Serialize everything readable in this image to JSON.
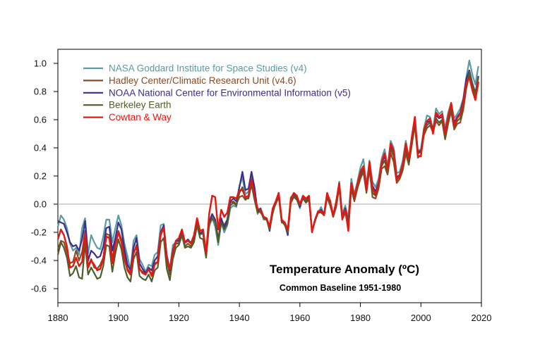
{
  "chart_data": {
    "type": "line",
    "title": "Temperature Anomaly (ºC)",
    "subtitle": "Common Baseline 1951-1980",
    "xlabel": "",
    "ylabel": "",
    "xlim": [
      1880,
      2020
    ],
    "ylim": [
      -0.7,
      1.1
    ],
    "xticks": [
      1880,
      1900,
      1920,
      1940,
      1960,
      1980,
      2000,
      2020
    ],
    "yticks": [
      -0.6,
      -0.4,
      -0.2,
      0.0,
      0.2,
      0.4,
      0.6,
      0.8,
      1.0
    ],
    "ytick_labels": [
      "-0.6",
      "-0.4",
      "-0.2",
      "0.0",
      "0.2",
      "0.4",
      "0.6",
      "0.8",
      "1.0"
    ],
    "reference_line": 0.0,
    "grid": false,
    "legend_position": "top-left",
    "x": [
      1880,
      1881,
      1882,
      1883,
      1884,
      1885,
      1886,
      1887,
      1888,
      1889,
      1890,
      1891,
      1892,
      1893,
      1894,
      1895,
      1896,
      1897,
      1898,
      1899,
      1900,
      1901,
      1902,
      1903,
      1904,
      1905,
      1906,
      1907,
      1908,
      1909,
      1910,
      1911,
      1912,
      1913,
      1914,
      1915,
      1916,
      1917,
      1918,
      1919,
      1920,
      1921,
      1922,
      1923,
      1924,
      1925,
      1926,
      1927,
      1928,
      1929,
      1930,
      1931,
      1932,
      1933,
      1934,
      1935,
      1936,
      1937,
      1938,
      1939,
      1940,
      1941,
      1942,
      1943,
      1944,
      1945,
      1946,
      1947,
      1948,
      1949,
      1950,
      1951,
      1952,
      1953,
      1954,
      1955,
      1956,
      1957,
      1958,
      1959,
      1960,
      1961,
      1962,
      1963,
      1964,
      1965,
      1966,
      1967,
      1968,
      1969,
      1970,
      1971,
      1972,
      1973,
      1974,
      1975,
      1976,
      1977,
      1978,
      1979,
      1980,
      1981,
      1982,
      1983,
      1984,
      1985,
      1986,
      1987,
      1988,
      1989,
      1990,
      1991,
      1992,
      1993,
      1994,
      1995,
      1996,
      1997,
      1998,
      1999,
      2000,
      2001,
      2002,
      2003,
      2004,
      2005,
      2006,
      2007,
      2008,
      2009,
      2010,
      2011,
      2012,
      2013,
      2014,
      2015,
      2016,
      2017,
      2018,
      2019
    ],
    "series": [
      {
        "name": "NASA Goddard Institute for Space Studies (v4)",
        "color": "#5b9aa0",
        "values": [
          -0.16,
          -0.08,
          -0.11,
          -0.17,
          -0.28,
          -0.33,
          -0.31,
          -0.36,
          -0.17,
          -0.1,
          -0.35,
          -0.22,
          -0.27,
          -0.31,
          -0.32,
          -0.23,
          -0.11,
          -0.11,
          -0.27,
          -0.17,
          -0.08,
          -0.15,
          -0.28,
          -0.37,
          -0.47,
          -0.26,
          -0.22,
          -0.39,
          -0.43,
          -0.48,
          -0.43,
          -0.44,
          -0.36,
          -0.34,
          -0.15,
          -0.14,
          -0.36,
          -0.46,
          -0.29,
          -0.27,
          -0.27,
          -0.19,
          -0.28,
          -0.26,
          -0.27,
          -0.22,
          -0.11,
          -0.22,
          -0.2,
          -0.36,
          -0.16,
          -0.1,
          -0.16,
          -0.29,
          -0.13,
          -0.2,
          -0.15,
          -0.03,
          -0.01,
          -0.02,
          0.13,
          0.19,
          0.07,
          0.09,
          0.2,
          0.09,
          -0.07,
          -0.03,
          -0.11,
          -0.11,
          -0.17,
          -0.07,
          0.01,
          0.08,
          -0.13,
          -0.14,
          -0.19,
          0.05,
          0.06,
          0.03,
          -0.03,
          0.06,
          0.03,
          0.05,
          -0.2,
          -0.11,
          -0.06,
          -0.02,
          -0.08,
          0.05,
          0.03,
          -0.08,
          0.01,
          0.16,
          -0.07,
          -0.01,
          -0.1,
          0.18,
          0.07,
          0.16,
          0.26,
          0.32,
          0.14,
          0.31,
          0.16,
          0.12,
          0.18,
          0.32,
          0.39,
          0.27,
          0.45,
          0.4,
          0.22,
          0.23,
          0.31,
          0.45,
          0.33,
          0.46,
          0.61,
          0.38,
          0.39,
          0.54,
          0.63,
          0.62,
          0.53,
          0.68,
          0.64,
          0.66,
          0.54,
          0.65,
          0.72,
          0.61,
          0.64,
          0.68,
          0.75,
          0.9,
          1.02,
          0.92,
          0.85,
          0.98
        ]
      },
      {
        "name": "Hadley Center/Climatic Research Unit (v4.6)",
        "color": "#8b4a22",
        "values": [
          -0.32,
          -0.26,
          -0.27,
          -0.34,
          -0.42,
          -0.41,
          -0.33,
          -0.4,
          -0.34,
          -0.19,
          -0.44,
          -0.39,
          -0.45,
          -0.46,
          -0.43,
          -0.38,
          -0.21,
          -0.22,
          -0.39,
          -0.27,
          -0.19,
          -0.25,
          -0.37,
          -0.46,
          -0.49,
          -0.35,
          -0.29,
          -0.46,
          -0.48,
          -0.49,
          -0.46,
          -0.5,
          -0.42,
          -0.41,
          -0.22,
          -0.17,
          -0.4,
          -0.5,
          -0.36,
          -0.28,
          -0.28,
          -0.21,
          -0.3,
          -0.28,
          -0.3,
          -0.24,
          -0.12,
          -0.21,
          -0.21,
          -0.36,
          -0.12,
          -0.08,
          -0.11,
          -0.25,
          -0.11,
          -0.15,
          -0.11,
          0.01,
          0.02,
          0.0,
          0.05,
          0.06,
          0.03,
          0.05,
          0.16,
          0.04,
          -0.04,
          -0.06,
          -0.09,
          -0.1,
          -0.17,
          -0.04,
          0.0,
          0.05,
          -0.13,
          -0.14,
          -0.19,
          0.01,
          0.05,
          0.03,
          -0.01,
          0.04,
          0.01,
          0.03,
          -0.19,
          -0.12,
          -0.06,
          -0.06,
          -0.08,
          0.05,
          -0.01,
          -0.09,
          -0.02,
          0.12,
          -0.11,
          -0.06,
          -0.16,
          0.11,
          0.02,
          0.11,
          0.18,
          0.23,
          0.08,
          0.25,
          0.05,
          0.04,
          0.11,
          0.25,
          0.27,
          0.21,
          0.36,
          0.3,
          0.15,
          0.18,
          0.24,
          0.36,
          0.28,
          0.42,
          0.56,
          0.33,
          0.35,
          0.49,
          0.54,
          0.56,
          0.51,
          0.59,
          0.56,
          0.59,
          0.46,
          0.57,
          0.66,
          0.53,
          0.57,
          0.58,
          0.67,
          0.82,
          0.92,
          0.84,
          0.75,
          0.86
        ]
      },
      {
        "name": "NOAA National Center for Environmental Information (v5)",
        "color": "#3a2f8f",
        "values": [
          -0.12,
          -0.13,
          -0.14,
          -0.2,
          -0.27,
          -0.3,
          -0.29,
          -0.33,
          -0.25,
          -0.12,
          -0.4,
          -0.33,
          -0.35,
          -0.38,
          -0.37,
          -0.3,
          -0.17,
          -0.16,
          -0.33,
          -0.24,
          -0.13,
          -0.18,
          -0.32,
          -0.43,
          -0.47,
          -0.31,
          -0.24,
          -0.42,
          -0.46,
          -0.49,
          -0.45,
          -0.47,
          -0.4,
          -0.37,
          -0.2,
          -0.15,
          -0.37,
          -0.47,
          -0.33,
          -0.26,
          -0.26,
          -0.18,
          -0.27,
          -0.25,
          -0.28,
          -0.23,
          -0.1,
          -0.21,
          -0.19,
          -0.34,
          -0.13,
          -0.07,
          -0.11,
          -0.26,
          -0.1,
          -0.17,
          -0.11,
          0.02,
          0.04,
          0.02,
          0.12,
          0.23,
          0.1,
          0.11,
          0.23,
          0.12,
          -0.05,
          -0.03,
          -0.09,
          -0.1,
          -0.19,
          -0.05,
          0.01,
          0.07,
          -0.12,
          -0.14,
          -0.22,
          0.03,
          0.07,
          0.04,
          -0.02,
          0.05,
          0.02,
          0.05,
          -0.19,
          -0.11,
          -0.06,
          -0.04,
          -0.07,
          0.06,
          0.01,
          -0.08,
          0.01,
          0.14,
          -0.09,
          -0.03,
          -0.13,
          0.14,
          0.04,
          0.13,
          0.22,
          0.26,
          0.12,
          0.28,
          0.13,
          0.09,
          0.15,
          0.29,
          0.34,
          0.25,
          0.41,
          0.37,
          0.19,
          0.21,
          0.28,
          0.42,
          0.3,
          0.46,
          0.59,
          0.37,
          0.38,
          0.52,
          0.58,
          0.59,
          0.53,
          0.63,
          0.61,
          0.62,
          0.52,
          0.61,
          0.7,
          0.58,
          0.62,
          0.65,
          0.74,
          0.89,
          0.95,
          0.86,
          0.79,
          0.91
        ]
      },
      {
        "name": "Berkeley Earth",
        "color": "#4e5e2a",
        "values": [
          -0.36,
          -0.27,
          -0.31,
          -0.38,
          -0.51,
          -0.49,
          -0.44,
          -0.52,
          -0.53,
          -0.28,
          -0.5,
          -0.45,
          -0.49,
          -0.53,
          -0.52,
          -0.44,
          -0.29,
          -0.3,
          -0.48,
          -0.35,
          -0.25,
          -0.32,
          -0.45,
          -0.52,
          -0.55,
          -0.39,
          -0.34,
          -0.51,
          -0.53,
          -0.54,
          -0.5,
          -0.55,
          -0.47,
          -0.45,
          -0.27,
          -0.24,
          -0.46,
          -0.54,
          -0.39,
          -0.31,
          -0.29,
          -0.22,
          -0.31,
          -0.3,
          -0.31,
          -0.27,
          -0.15,
          -0.24,
          -0.25,
          -0.38,
          -0.14,
          -0.1,
          -0.13,
          -0.27,
          -0.13,
          -0.18,
          -0.14,
          -0.01,
          0.01,
          -0.01,
          0.08,
          0.12,
          0.04,
          0.04,
          0.14,
          0.03,
          -0.06,
          -0.05,
          -0.1,
          -0.11,
          -0.18,
          -0.06,
          0.01,
          0.07,
          -0.12,
          -0.15,
          -0.2,
          0.02,
          0.06,
          0.04,
          -0.01,
          0.05,
          0.02,
          0.04,
          -0.19,
          -0.12,
          -0.05,
          -0.05,
          -0.07,
          0.06,
          0.01,
          -0.09,
          0.0,
          0.13,
          -0.1,
          -0.05,
          -0.13,
          0.12,
          0.04,
          0.12,
          0.2,
          0.24,
          0.09,
          0.27,
          0.08,
          0.06,
          0.13,
          0.27,
          0.31,
          0.23,
          0.39,
          0.34,
          0.17,
          0.2,
          0.26,
          0.4,
          0.29,
          0.44,
          0.58,
          0.36,
          0.37,
          0.51,
          0.56,
          0.58,
          0.51,
          0.61,
          0.58,
          0.6,
          0.48,
          0.59,
          0.68,
          0.55,
          0.59,
          0.61,
          0.7,
          0.84,
          0.94,
          0.85,
          0.78,
          0.9
        ]
      },
      {
        "name": "Cowtan & Way",
        "color": "#e8160f",
        "values": [
          -0.25,
          -0.18,
          -0.22,
          -0.3,
          -0.45,
          -0.44,
          -0.38,
          -0.44,
          -0.41,
          -0.21,
          -0.45,
          -0.4,
          -0.43,
          -0.47,
          -0.46,
          -0.39,
          -0.23,
          -0.24,
          -0.42,
          -0.29,
          -0.2,
          -0.27,
          -0.39,
          -0.47,
          -0.5,
          -0.35,
          -0.3,
          -0.46,
          -0.49,
          -0.5,
          -0.46,
          -0.51,
          -0.43,
          -0.41,
          -0.21,
          -0.17,
          -0.39,
          -0.46,
          -0.34,
          -0.26,
          -0.24,
          -0.18,
          -0.27,
          -0.26,
          -0.28,
          -0.22,
          -0.1,
          -0.19,
          -0.18,
          -0.35,
          -0.07,
          0.06,
          0.05,
          -0.18,
          -0.04,
          -0.09,
          -0.06,
          0.05,
          0.05,
          0.04,
          0.1,
          0.1,
          0.05,
          0.06,
          0.18,
          0.06,
          -0.03,
          -0.04,
          -0.09,
          -0.1,
          -0.16,
          -0.03,
          0.02,
          0.08,
          -0.11,
          -0.13,
          -0.18,
          0.04,
          0.08,
          0.06,
          0.0,
          0.06,
          0.04,
          0.06,
          -0.2,
          -0.11,
          -0.05,
          -0.05,
          -0.07,
          0.08,
          0.02,
          -0.08,
          0.02,
          0.15,
          -0.1,
          -0.04,
          -0.19,
          0.15,
          0.05,
          0.14,
          0.23,
          0.27,
          0.1,
          0.3,
          0.11,
          0.07,
          0.14,
          0.3,
          0.36,
          0.25,
          0.43,
          0.38,
          0.17,
          0.21,
          0.28,
          0.43,
          0.32,
          0.48,
          0.62,
          0.34,
          0.34,
          0.53,
          0.59,
          0.61,
          0.5,
          0.65,
          0.62,
          0.64,
          0.5,
          0.62,
          0.72,
          0.56,
          0.61,
          0.64,
          0.72,
          0.86,
          0.9,
          0.81,
          0.74,
          0.87
        ]
      }
    ]
  }
}
